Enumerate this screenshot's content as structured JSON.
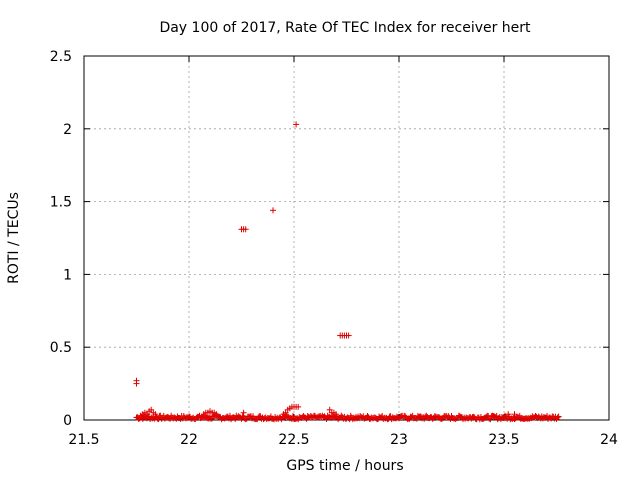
{
  "chart_data": {
    "type": "scatter",
    "title": "Day 100 of 2017, Rate Of TEC Index for receiver hert",
    "xlabel": "GPS time / hours",
    "ylabel": "ROTI / TECUs",
    "xlim": [
      21.5,
      24
    ],
    "ylim": [
      0,
      2.5
    ],
    "xticks": [
      21.5,
      22,
      22.5,
      23,
      23.5,
      24
    ],
    "xtick_labels": [
      "21.5",
      "22",
      "22.5",
      "23",
      "23.5",
      "24"
    ],
    "yticks": [
      0,
      0.5,
      1,
      1.5,
      2,
      2.5
    ],
    "ytick_labels": [
      "0",
      "0.5",
      "1",
      "1.5",
      "2",
      "2.5"
    ],
    "grid": true,
    "marker": "+",
    "marker_color": "#e00000",
    "series": [
      {
        "points": [
          [
            21.75,
            0.27
          ],
          [
            21.75,
            0.25
          ],
          [
            22.25,
            1.31
          ],
          [
            22.26,
            1.31
          ],
          [
            22.27,
            1.31
          ],
          [
            22.4,
            1.44
          ],
          [
            22.51,
            2.03
          ],
          [
            22.72,
            0.58
          ],
          [
            22.73,
            0.58
          ],
          [
            22.74,
            0.58
          ],
          [
            22.75,
            0.58
          ],
          [
            22.76,
            0.58
          ],
          [
            21.77,
            0.03
          ],
          [
            21.78,
            0.04
          ],
          [
            21.79,
            0.05
          ],
          [
            21.8,
            0.04
          ],
          [
            21.81,
            0.06
          ],
          [
            21.82,
            0.07
          ],
          [
            21.83,
            0.05
          ],
          [
            21.84,
            0.04
          ],
          [
            22.07,
            0.04
          ],
          [
            22.08,
            0.05
          ],
          [
            22.09,
            0.05
          ],
          [
            22.1,
            0.06
          ],
          [
            22.11,
            0.05
          ],
          [
            22.12,
            0.05
          ],
          [
            22.13,
            0.04
          ],
          [
            22.26,
            0.05
          ],
          [
            22.45,
            0.04
          ],
          [
            22.46,
            0.05
          ],
          [
            22.47,
            0.07
          ],
          [
            22.48,
            0.08
          ],
          [
            22.49,
            0.09
          ],
          [
            22.5,
            0.09
          ],
          [
            22.51,
            0.09
          ],
          [
            22.52,
            0.09
          ],
          [
            22.67,
            0.07
          ],
          [
            22.68,
            0.05
          ],
          [
            22.69,
            0.05
          ],
          [
            22.7,
            0.04
          ],
          [
            23.52,
            0.04
          ],
          [
            23.55,
            0.04
          ]
        ],
        "baseline": {
          "x_start": 21.75,
          "x_end": 23.76,
          "step": 0.005,
          "y_min": 0.005,
          "y_max": 0.03
        }
      }
    ]
  }
}
